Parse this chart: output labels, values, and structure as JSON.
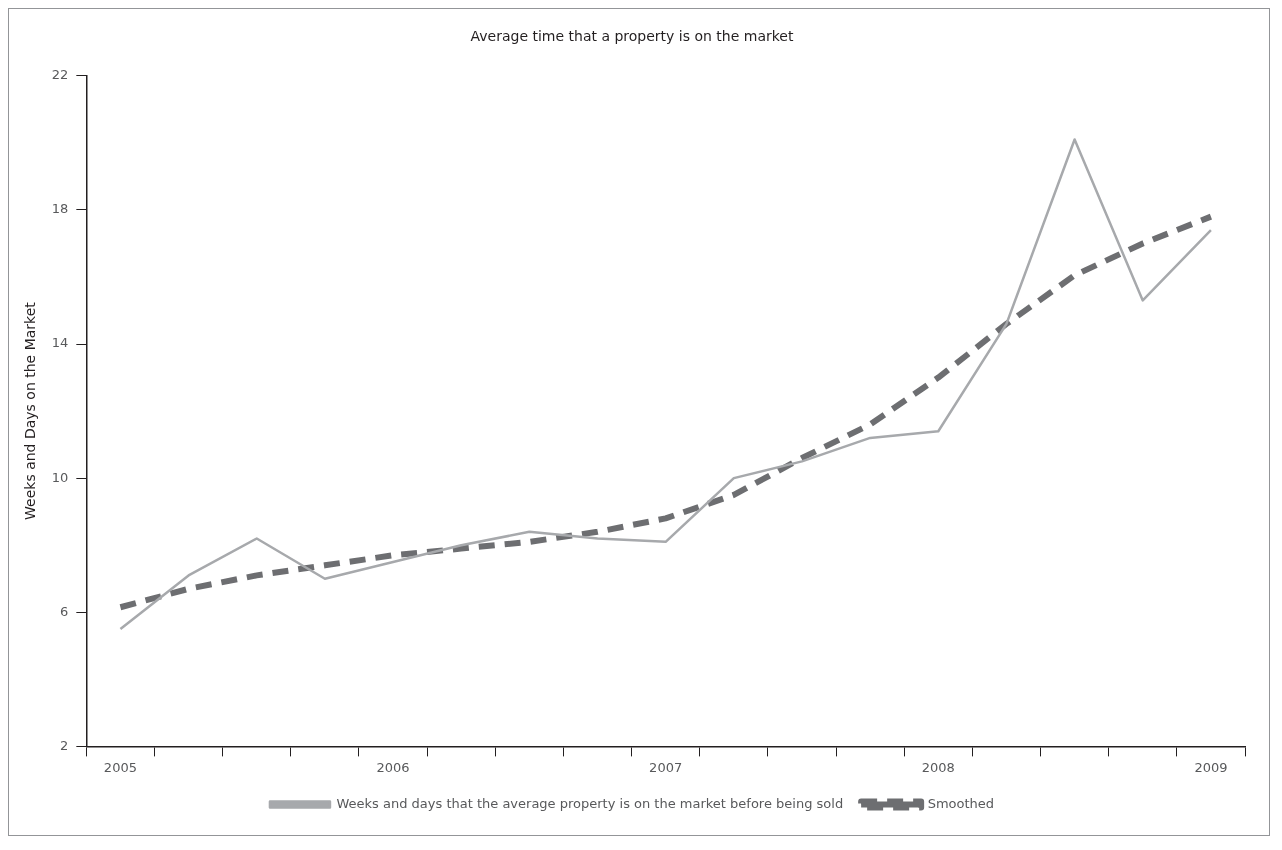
{
  "chart_data": {
    "type": "line",
    "title": "Average time that a property is on the market",
    "ylabel": "Weeks and Days on the Market",
    "categories": [
      "2005",
      null,
      null,
      null,
      "2006",
      null,
      null,
      null,
      "2007",
      null,
      null,
      null,
      "2008",
      null,
      null,
      null,
      "2009"
    ],
    "series": [
      {
        "name": "Weeks and days that the average property is on the market before being sold",
        "color": "#a7a9ac",
        "line_style": "solid",
        "values": [
          5.5,
          7.1,
          8.2,
          7.0,
          7.5,
          8.0,
          8.4,
          8.2,
          8.1,
          10.0,
          10.5,
          11.2,
          11.4,
          14.6,
          20.1,
          15.3,
          17.4
        ]
      },
      {
        "name": "Smoothed",
        "color": "#6d6e71",
        "line_style": "dashed",
        "values": [
          6.15,
          6.7,
          7.1,
          7.4,
          7.7,
          7.9,
          8.1,
          8.4,
          8.8,
          9.5,
          10.6,
          11.6,
          13.0,
          14.6,
          16.05,
          17.0,
          17.8
        ]
      }
    ],
    "ylim": [
      2,
      22
    ],
    "yticks": [
      2,
      6,
      10,
      14,
      18,
      22
    ],
    "grid": false,
    "legend": "bottom",
    "marker": "none"
  }
}
